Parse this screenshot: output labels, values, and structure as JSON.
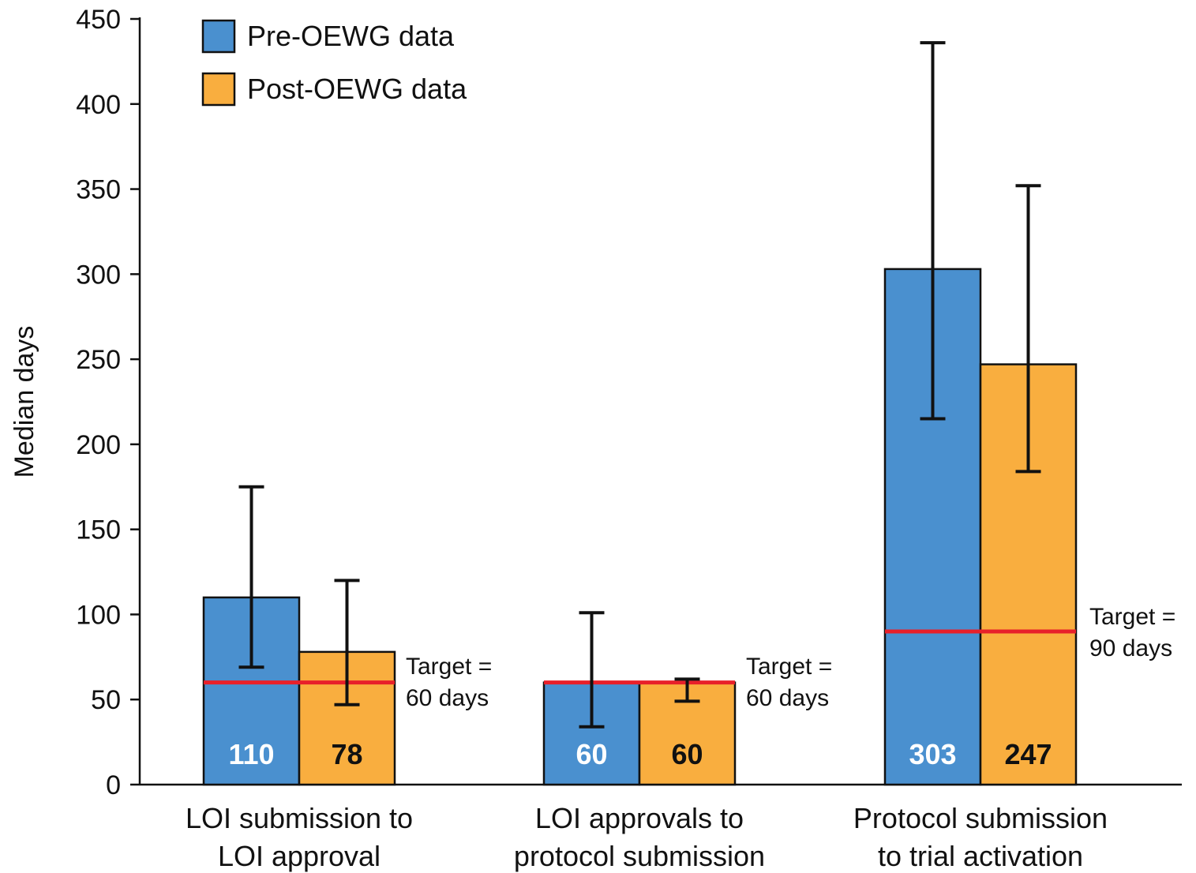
{
  "chart_data": {
    "type": "bar",
    "ylabel": "Median days",
    "ylim": [
      0,
      450
    ],
    "yticks": [
      "0",
      "50",
      "100",
      "150",
      "200",
      "250",
      "300",
      "350",
      "400",
      "450"
    ],
    "categories": [
      [
        "LOI submission to",
        "LOI approval"
      ],
      [
        "LOI approvals to",
        "protocol submission"
      ],
      [
        "Protocol submission",
        "to trial activation"
      ]
    ],
    "series": [
      {
        "name": "Pre-OEWG data",
        "color": "#4a90cf",
        "label_color": "#ffffff",
        "values": [
          110,
          60,
          303
        ],
        "value_labels": [
          "110",
          "60",
          "303"
        ],
        "error_low": [
          69,
          34,
          215
        ],
        "error_high": [
          175,
          101,
          436
        ]
      },
      {
        "name": "Post-OEWG data",
        "color": "#f9ae3f",
        "label_color": "#111111",
        "values": [
          78,
          60,
          247
        ],
        "value_labels": [
          "78",
          "60",
          "247"
        ],
        "error_low": [
          47,
          49,
          184
        ],
        "error_high": [
          120,
          62,
          352
        ]
      }
    ],
    "targets": [
      {
        "value": 60,
        "label": [
          "Target =",
          "60 days"
        ]
      },
      {
        "value": 60,
        "label": [
          "Target =",
          "60 days"
        ]
      },
      {
        "value": 90,
        "label": [
          "Target =",
          "90 days"
        ]
      }
    ],
    "target_color": "#e8202a",
    "legend_position": "top-left",
    "grid": false
  }
}
